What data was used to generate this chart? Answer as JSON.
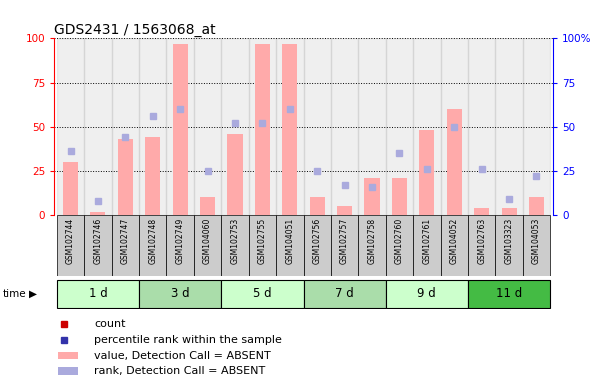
{
  "title": "GDS2431 / 1563068_at",
  "samples": [
    "GSM102744",
    "GSM102746",
    "GSM102747",
    "GSM102748",
    "GSM102749",
    "GSM104060",
    "GSM102753",
    "GSM102755",
    "GSM104051",
    "GSM102756",
    "GSM102757",
    "GSM102758",
    "GSM102760",
    "GSM102761",
    "GSM104052",
    "GSM102763",
    "GSM103323",
    "GSM104053"
  ],
  "time_groups": [
    {
      "label": "1 d",
      "start": 0,
      "end": 3,
      "color": "#ccffcc"
    },
    {
      "label": "3 d",
      "start": 3,
      "end": 6,
      "color": "#aaddaa"
    },
    {
      "label": "5 d",
      "start": 6,
      "end": 9,
      "color": "#ccffcc"
    },
    {
      "label": "7 d",
      "start": 9,
      "end": 12,
      "color": "#aaddaa"
    },
    {
      "label": "9 d",
      "start": 12,
      "end": 15,
      "color": "#ccffcc"
    },
    {
      "label": "11 d",
      "start": 15,
      "end": 18,
      "color": "#44bb44"
    }
  ],
  "bar_values": [
    30,
    2,
    43,
    44,
    97,
    10,
    46,
    97,
    97,
    10,
    5,
    21,
    21,
    48,
    60,
    4,
    4,
    10
  ],
  "rank_values": [
    36,
    8,
    44,
    56,
    60,
    25,
    52,
    52,
    60,
    25,
    17,
    16,
    35,
    26,
    50,
    26,
    9,
    22
  ],
  "bar_color": "#ffaaaa",
  "rank_color": "#aaaadd",
  "ylim": [
    0,
    100
  ],
  "yticks": [
    0,
    25,
    50,
    75,
    100
  ],
  "legend_items": [
    {
      "color": "#cc0000",
      "marker": "s",
      "label": "count"
    },
    {
      "color": "#3333aa",
      "marker": "s",
      "label": "percentile rank within the sample"
    },
    {
      "color": "#ffaaaa",
      "marker": "rect",
      "label": "value, Detection Call = ABSENT"
    },
    {
      "color": "#aaaadd",
      "marker": "rect",
      "label": "rank, Detection Call = ABSENT"
    }
  ]
}
